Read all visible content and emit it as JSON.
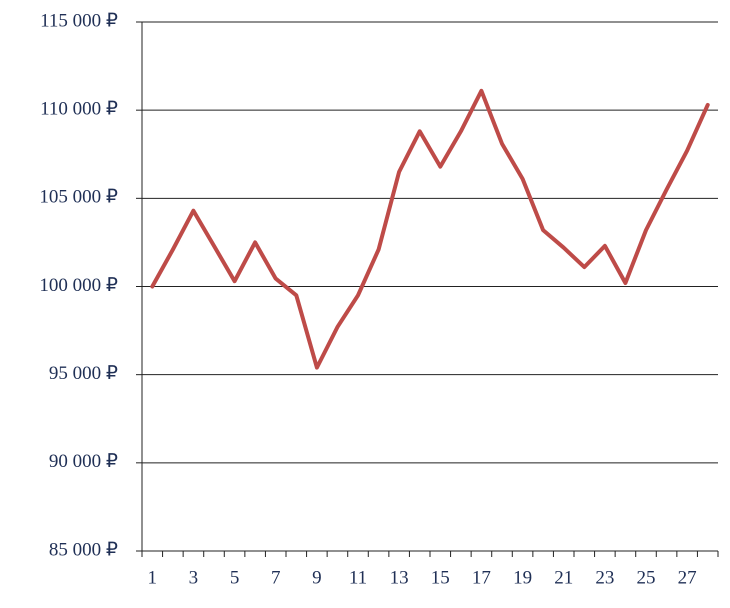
{
  "chart_data": {
    "type": "line",
    "categories": [
      "1",
      null,
      "3",
      null,
      "5",
      null,
      "7",
      null,
      "9",
      null,
      "11",
      null,
      "13",
      null,
      "15",
      null,
      "17",
      null,
      "19",
      null,
      "21",
      null,
      "23",
      null,
      "25",
      null,
      "27",
      null
    ],
    "series": [
      {
        "color": "#be4b48",
        "values": [
          100000,
          102100,
          104300,
          102300,
          100300,
          102500,
          100450,
          99500,
          95400,
          97700,
          99500,
          102100,
          106500,
          108800,
          106800,
          108800,
          111100,
          108100,
          106100,
          103200,
          102200,
          101100,
          102300,
          100200,
          103200,
          105500,
          107700,
          110300
        ]
      }
    ],
    "ylim": [
      85000,
      115000
    ],
    "yticks": [
      {
        "value": 85000,
        "label": "85 000 ₽"
      },
      {
        "value": 90000,
        "label": "90 000 ₽"
      },
      {
        "value": 95000,
        "label": "95 000 ₽"
      },
      {
        "value": 100000,
        "label": "100 000 ₽"
      },
      {
        "value": 105000,
        "label": "105 000 ₽"
      },
      {
        "value": 110000,
        "label": "110 000 ₽"
      },
      {
        "value": 115000,
        "label": "115 000 ₽"
      }
    ],
    "grid": true
  }
}
